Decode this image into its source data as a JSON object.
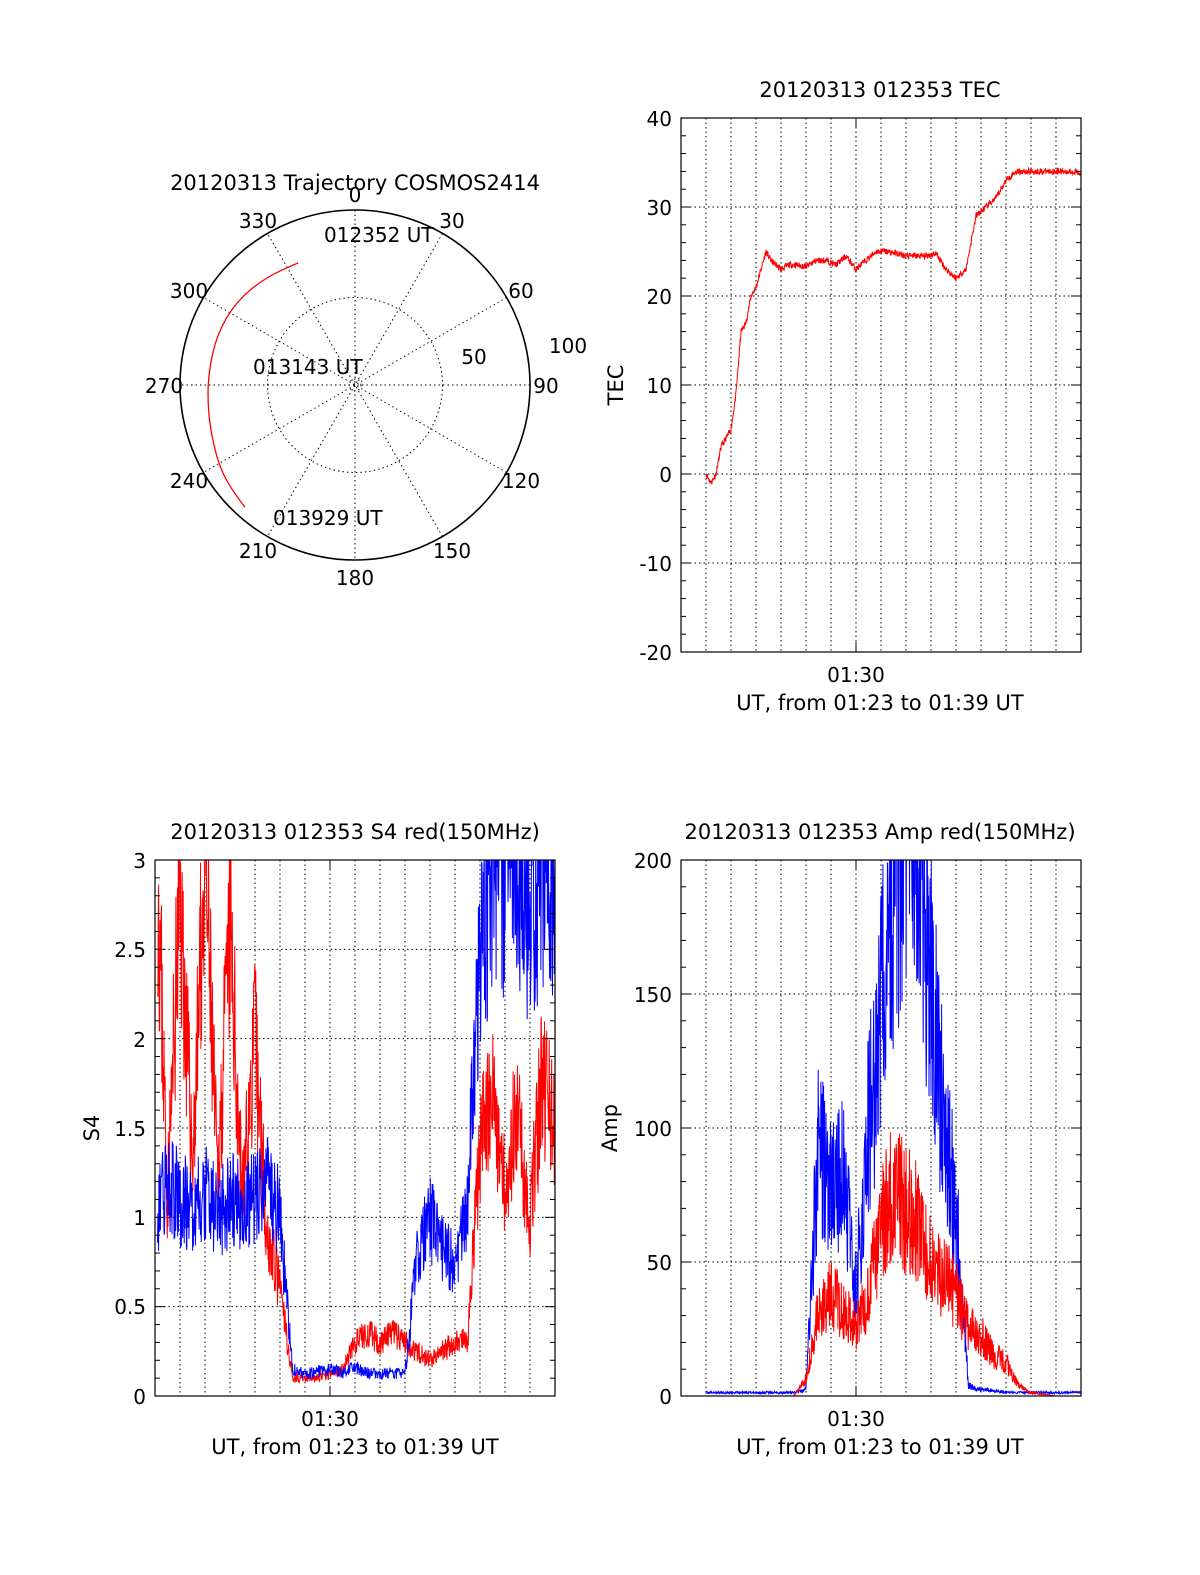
{
  "chart_data": [
    {
      "id": "trajectory",
      "type": "polar",
      "title": "20120313 Trajectory COSMOS2414",
      "azimuth_labels": [
        "0",
        "30",
        "60",
        "90",
        "120",
        "150",
        "180",
        "210",
        "240",
        "270",
        "300",
        "330"
      ],
      "radial_labels": [
        "50",
        "100"
      ],
      "radial_range": [
        0,
        100
      ],
      "series_color": "#ff0000",
      "track": [
        {
          "az": 335,
          "r": 77
        },
        {
          "az": 320,
          "r": 80
        },
        {
          "az": 305,
          "r": 83
        },
        {
          "az": 290,
          "r": 84
        },
        {
          "az": 275,
          "r": 84
        },
        {
          "az": 262,
          "r": 85
        },
        {
          "az": 250,
          "r": 87
        },
        {
          "az": 240,
          "r": 90
        },
        {
          "az": 232,
          "r": 92
        },
        {
          "az": 222,
          "r": 94
        }
      ],
      "annotations": [
        {
          "text": "012352 UT",
          "az": 335,
          "r": 77
        },
        {
          "text": "013143 UT",
          "az": 0,
          "r": 0
        },
        {
          "text": "013929 UT",
          "az": 222,
          "r": 94
        }
      ]
    },
    {
      "id": "tec",
      "type": "line",
      "title": "20120313 012353 TEC",
      "xlabel": "UT, from 01:23 to 01:39 UT",
      "ylabel": "TEC",
      "x_tick_label": "01:30",
      "x_tick_minute": 7,
      "xlim_minutes": [
        0,
        16
      ],
      "ylim": [
        -20,
        40
      ],
      "yticks": [
        -20,
        -10,
        0,
        10,
        20,
        30,
        40
      ],
      "series": [
        {
          "name": "TEC",
          "color": "#ff0000",
          "x": [
            1.0,
            1.2,
            1.4,
            1.6,
            1.8,
            2.0,
            2.2,
            2.4,
            2.6,
            2.8,
            3.0,
            3.2,
            3.4,
            3.6,
            3.8,
            4.0,
            4.3,
            4.6,
            5.0,
            5.4,
            5.8,
            6.2,
            6.6,
            7.0,
            7.4,
            7.8,
            8.2,
            8.6,
            9.0,
            9.4,
            9.8,
            10.2,
            10.6,
            11.0,
            11.4,
            11.8,
            12.2,
            12.6,
            13.0,
            13.4,
            13.8,
            14.2,
            14.6,
            15.0,
            15.4,
            15.8,
            16.0
          ],
          "y": [
            0,
            -1,
            0,
            3,
            4,
            5,
            9,
            16,
            17,
            20,
            21,
            23,
            25,
            24,
            23.5,
            23,
            23.5,
            23.5,
            23.3,
            24,
            24,
            23.5,
            24.5,
            23,
            24,
            25,
            25,
            24.8,
            24.5,
            24.5,
            24.5,
            24.8,
            23,
            22,
            23,
            29,
            30,
            31,
            33,
            34,
            34,
            34,
            34,
            34,
            34,
            34,
            33.5
          ]
        }
      ]
    },
    {
      "id": "s4",
      "type": "line",
      "title": "20120313 012353 S4 red(150MHz)",
      "xlabel": "UT, from 01:23 to 01:39 UT",
      "ylabel": "S4",
      "x_tick_label": "01:30",
      "x_tick_minute": 7,
      "xlim_minutes": [
        0,
        16
      ],
      "ylim": [
        0,
        3
      ],
      "yticks": [
        "0",
        "0.5",
        "1",
        "1.5",
        "2",
        "2.5",
        "3"
      ],
      "series": [
        {
          "name": "S4 red",
          "color": "#ff0000",
          "x": [
            0.1,
            0.5,
            1.0,
            1.5,
            2.0,
            2.5,
            3.0,
            3.5,
            4.0,
            4.5,
            5.0,
            5.5,
            6.0,
            6.5,
            7.0,
            7.5,
            8.0,
            8.5,
            9.0,
            9.5,
            10.0,
            10.5,
            11.0,
            11.5,
            12.0,
            12.5,
            13.0,
            13.5,
            14.0,
            14.5,
            15.0,
            15.5,
            16.0
          ],
          "y": [
            3.0,
            1.1,
            2.8,
            1.3,
            3.0,
            1.2,
            2.6,
            1.1,
            2.0,
            0.9,
            0.6,
            0.1,
            0.1,
            0.1,
            0.12,
            0.15,
            0.3,
            0.35,
            0.3,
            0.35,
            0.3,
            0.25,
            0.2,
            0.25,
            0.3,
            0.3,
            1.4,
            1.7,
            1.2,
            1.6,
            1.0,
            1.8,
            1.5
          ]
        },
        {
          "name": "S4 blue",
          "color": "#0000ff",
          "x": [
            0.1,
            0.5,
            1.0,
            1.5,
            2.0,
            2.5,
            3.0,
            3.5,
            4.0,
            4.5,
            5.0,
            5.5,
            6.0,
            6.5,
            7.0,
            7.5,
            8.0,
            8.5,
            9.0,
            9.5,
            10.0,
            10.5,
            11.0,
            11.5,
            12.0,
            12.5,
            13.0,
            13.5,
            14.0,
            14.5,
            15.0,
            15.5,
            16.0
          ],
          "y": [
            1.0,
            1.2,
            1.1,
            1.05,
            1.15,
            1.0,
            1.1,
            1.05,
            1.1,
            1.2,
            1.0,
            0.15,
            0.12,
            0.14,
            0.15,
            0.13,
            0.16,
            0.13,
            0.12,
            0.13,
            0.12,
            0.8,
            1.0,
            0.8,
            0.75,
            1.1,
            2.5,
            3.0,
            2.8,
            3.0,
            2.6,
            3.0,
            2.9
          ]
        }
      ]
    },
    {
      "id": "amp",
      "type": "line",
      "title": "20120313 012353 Amp red(150MHz)",
      "xlabel": "UT, from 01:23 to 01:39 UT",
      "ylabel": "Amp",
      "x_tick_label": "01:30",
      "x_tick_minute": 7,
      "xlim_minutes": [
        0,
        16
      ],
      "ylim": [
        0,
        200
      ],
      "yticks": [
        0,
        50,
        100,
        150,
        200
      ],
      "series": [
        {
          "name": "Amp blue",
          "color": "#0000ff",
          "x": [
            1.0,
            2.0,
            3.0,
            4.0,
            4.5,
            5.0,
            5.5,
            6.0,
            6.5,
            7.0,
            7.5,
            8.0,
            8.5,
            9.0,
            9.5,
            10.0,
            10.5,
            11.0,
            11.5,
            12.0,
            13.0,
            14.0,
            15.0,
            16.0
          ],
          "y": [
            1,
            1,
            1,
            1,
            1,
            2,
            75,
            60,
            65,
            30,
            80,
            110,
            150,
            190,
            160,
            120,
            80,
            55,
            3,
            2,
            1,
            1,
            1,
            1
          ]
        },
        {
          "name": "Amp red",
          "color": "#ff0000",
          "x": [
            1.0,
            2.0,
            3.0,
            4.0,
            4.5,
            5.0,
            5.5,
            6.0,
            6.5,
            7.0,
            7.5,
            8.0,
            8.5,
            9.0,
            9.5,
            10.0,
            10.5,
            11.0,
            11.5,
            12.0,
            12.5,
            13.0,
            13.5,
            14.0,
            15.0,
            16.0
          ],
          "y": [
            0,
            0,
            0,
            0,
            0,
            5,
            25,
            30,
            25,
            20,
            30,
            50,
            60,
            55,
            50,
            40,
            35,
            30,
            20,
            18,
            12,
            10,
            3,
            1,
            0,
            0
          ]
        }
      ]
    }
  ]
}
